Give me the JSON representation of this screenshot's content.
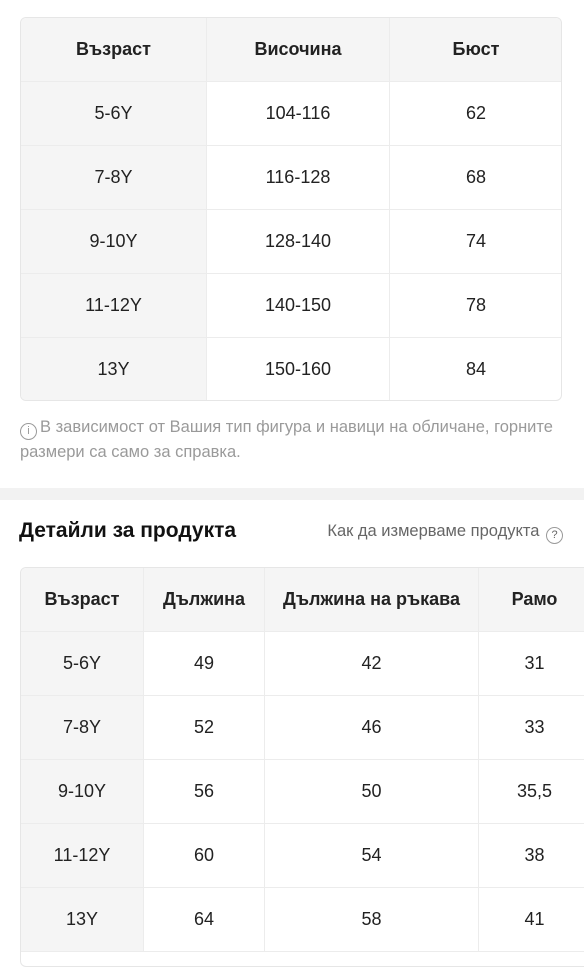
{
  "size_table": {
    "headers": [
      "Възраст",
      "Височина",
      "Бюст"
    ],
    "rows": [
      [
        "5-6Y",
        "104-116",
        "62"
      ],
      [
        "7-8Y",
        "116-128",
        "68"
      ],
      [
        "9-10Y",
        "128-140",
        "74"
      ],
      [
        "11-12Y",
        "140-150",
        "78"
      ],
      [
        "13Y",
        "150-160",
        "84"
      ]
    ]
  },
  "note": "В зависимост от Вашия тип фигура и навици на обличане, горните размери са само за справка.",
  "details": {
    "title": "Детайли за продукта",
    "link": "Как да измерваме продукта",
    "table": {
      "headers": [
        "Възраст",
        "Дължина",
        "Дължина на ръкава",
        "Рамо"
      ],
      "rows": [
        [
          "5-6Y",
          "49",
          "42",
          "31"
        ],
        [
          "7-8Y",
          "52",
          "46",
          "33"
        ],
        [
          "9-10Y",
          "56",
          "50",
          "35,5"
        ],
        [
          "11-12Y",
          "60",
          "54",
          "38"
        ],
        [
          "13Y",
          "64",
          "58",
          "41"
        ]
      ]
    }
  }
}
